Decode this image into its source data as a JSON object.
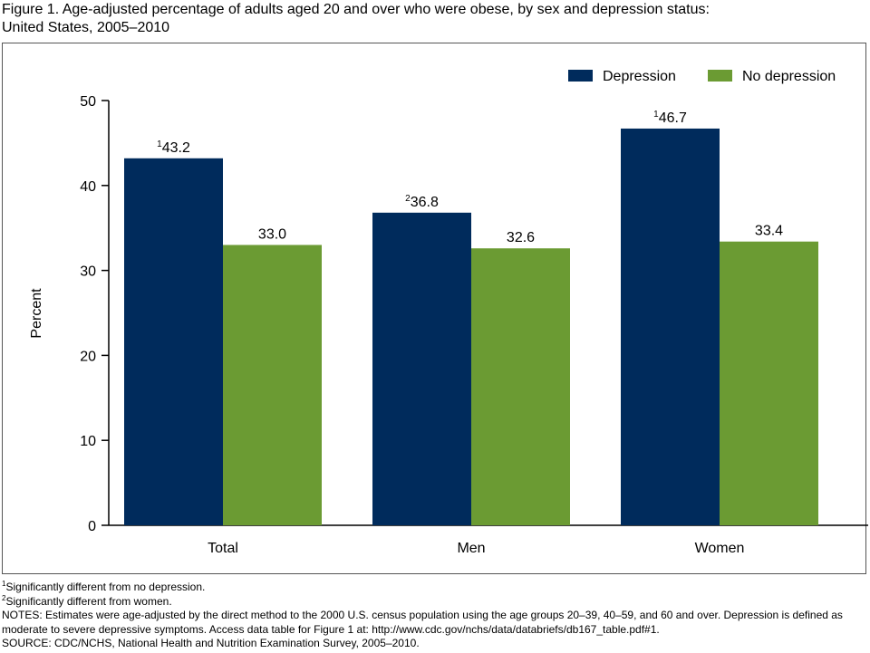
{
  "title_line1": "Figure 1. Age-adjusted percentage of adults aged 20 and over who were obese, by sex and depression status:",
  "title_line2": "United States, 2005–2010",
  "chart_data": {
    "type": "bar",
    "title": "Figure 1. Age-adjusted percentage of adults aged 20 and over who were obese, by sex and depression status: United States, 2005–2010",
    "xlabel": "",
    "ylabel": "Percent",
    "ylim": [
      0,
      50
    ],
    "yticks": [
      0,
      10,
      20,
      30,
      40,
      50
    ],
    "grid": false,
    "legend_position": "top-right",
    "categories": [
      "Total",
      "Men",
      "Women"
    ],
    "series": [
      {
        "name": "Depression",
        "color": "#002b5c",
        "values": [
          43.2,
          36.8,
          46.7
        ],
        "labels": [
          "43.2",
          "36.8",
          "46.7"
        ],
        "footnotes": [
          "1",
          "2",
          "1"
        ]
      },
      {
        "name": "No depression",
        "color": "#6b9b33",
        "values": [
          33.0,
          32.6,
          33.4
        ],
        "labels": [
          "33.0",
          "32.6",
          "33.4"
        ],
        "footnotes": [
          "",
          "",
          ""
        ]
      }
    ]
  },
  "notes": {
    "fn1_mark": "1",
    "fn1": "Significantly different from no depression.",
    "fn2_mark": "2",
    "fn2": "Significantly different from women.",
    "notes": "NOTES: Estimates were age-adjusted by the direct method to the 2000 U.S. census population using the age groups 20–39, 40–59, and 60 and over. Depression is defined as moderate to severe depressive symptoms. Access data table for Figure 1 at: http://www.cdc.gov/nchs/data/databriefs/db167_table.pdf#1.",
    "source": "SOURCE: CDC/NCHS, National Health and Nutrition Examination Survey, 2005–2010."
  }
}
